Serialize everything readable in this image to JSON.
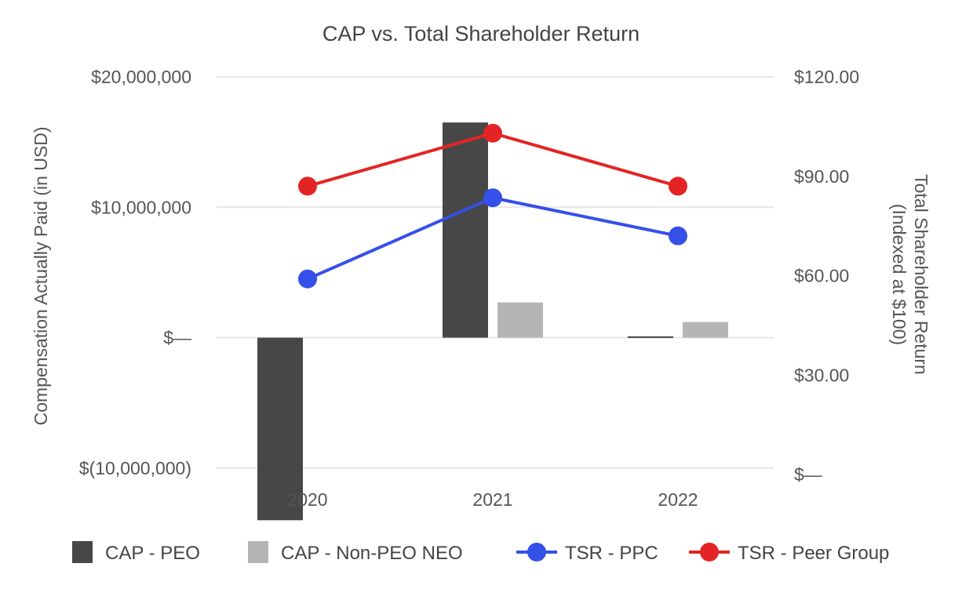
{
  "chart_data": {
    "type": "bar",
    "title": "CAP vs. Total Shareholder Return",
    "categories": [
      "2020",
      "2021",
      "2022"
    ],
    "left_axis": {
      "label": "Compensation Actually Paid (in USD)",
      "range": [
        -15000000,
        20000000
      ],
      "ticks": [
        20000000,
        10000000,
        0,
        -10000000
      ],
      "tick_labels": [
        "$20,000,000",
        "$10,000,000",
        "$—",
        "$(10,000,000)"
      ]
    },
    "right_axis": {
      "label_line1": "Total Shareholder Return",
      "label_line2": "(Indexed at $100)",
      "range": [
        0,
        120
      ],
      "ticks": [
        120,
        90,
        60,
        30,
        0
      ],
      "tick_labels": [
        "$120.00",
        "$90.00",
        "$60.00",
        "$30.00",
        "$—"
      ]
    },
    "bar_series": [
      {
        "name": "CAP - PEO",
        "color": "#474747",
        "values": [
          -14000000,
          16500000,
          100000
        ]
      },
      {
        "name": "CAP - Non-PEO NEO",
        "color": "#b5b5b5",
        "values": [
          null,
          2700000,
          1200000
        ]
      }
    ],
    "line_series": [
      {
        "name": "TSR - PPC",
        "color": "#3550e8",
        "values": [
          59.0,
          83.5,
          72.0
        ]
      },
      {
        "name": "TSR - Peer Group",
        "color": "#e42424",
        "values": [
          87.0,
          103.0,
          87.0
        ]
      }
    ],
    "legend": [
      "CAP - PEO",
      "CAP - Non-PEO NEO",
      "TSR - PPC",
      "TSR - Peer Group"
    ],
    "grid": true,
    "legend_position": "bottom"
  }
}
